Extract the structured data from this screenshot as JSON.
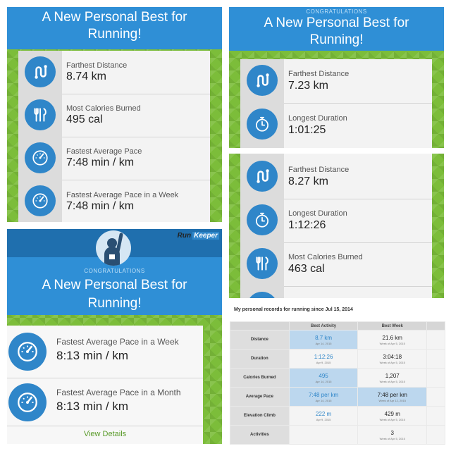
{
  "panel1": {
    "title_line1": "A New Personal Best for",
    "title_line2": "Running!",
    "records": [
      {
        "icon": "route-icon",
        "label": "Farthest Distance",
        "value": "8.74 km"
      },
      {
        "icon": "fork-knife-icon",
        "label": "Most Calories Burned",
        "value": "495 cal"
      },
      {
        "icon": "speedometer-icon",
        "label": "Fastest Average Pace",
        "value": "7:48 min / km"
      },
      {
        "icon": "speedometer-icon",
        "label": "Fastest Average Pace in a Week",
        "value": "7:48 min / km"
      }
    ]
  },
  "panel2": {
    "congrats": "CONGRATULATIONS",
    "title_line1": "A New Personal Best for",
    "title_line2": "Running!",
    "records": [
      {
        "icon": "route-icon",
        "label": "Farthest Distance",
        "value": "7.23 km"
      },
      {
        "icon": "stopwatch-icon",
        "label": "Longest Duration",
        "value": "1:01:25"
      }
    ]
  },
  "panel3": {
    "records": [
      {
        "icon": "route-icon",
        "label": "Farthest Distance",
        "value": "8.27 km"
      },
      {
        "icon": "stopwatch-icon",
        "label": "Longest Duration",
        "value": "1:12:26"
      },
      {
        "icon": "fork-knife-icon",
        "label": "Most Calories Burned",
        "value": "463 cal"
      }
    ]
  },
  "panel4": {
    "logo_part1": "Run",
    "logo_part2": "Keeper",
    "congrats": "CONGRATULATIONS",
    "title_line1": "A New Personal Best for",
    "title_line2": "Running!",
    "records": [
      {
        "icon": "speedometer-icon",
        "label": "Fastest Average Pace in a Week",
        "value": "8:13 min / km"
      },
      {
        "icon": "speedometer-icon",
        "label": "Fastest Average Pace in a Month",
        "value": "8:13 min / km"
      }
    ],
    "view_details": "View Details"
  },
  "table": {
    "title": "My personal records for running since Jul 15, 2014",
    "headers": [
      "",
      "Best Activity",
      "Best Week"
    ],
    "rows": [
      {
        "name": "Distance",
        "activity": "8.7 km",
        "activity_date": "Apr 14, 2015",
        "week": "21.6 km",
        "week_date": "Week of Apr 5, 2015"
      },
      {
        "name": "Duration",
        "activity": "1:12:26",
        "activity_date": "Apr 9, 2015",
        "week": "3:04:18",
        "week_date": "Week of Apr 5, 2015"
      },
      {
        "name": "Calories Burned",
        "activity": "495",
        "activity_date": "Apr 14, 2015",
        "week": "1,207",
        "week_date": "Week of Apr 5, 2015"
      },
      {
        "name": "Average Pace",
        "activity": "7:48 per km",
        "activity_date": "Apr 14, 2015",
        "week": "7:48 per km",
        "week_date": "Week of Apr 12, 2015"
      },
      {
        "name": "Elevation Climb",
        "activity": "222 m",
        "activity_date": "Apr 9, 2015",
        "week": "429 m",
        "week_date": "Week of Apr 5, 2015"
      },
      {
        "name": "Activities",
        "activity": "",
        "activity_date": "",
        "week": "3",
        "week_date": "Week of Apr 5, 2015"
      }
    ]
  },
  "colors": {
    "accent_blue": "#2f86c9",
    "banner_blue": "#2f8fd6",
    "grass_green": "#7cbd3a",
    "highlight": "#bcd7ee"
  }
}
